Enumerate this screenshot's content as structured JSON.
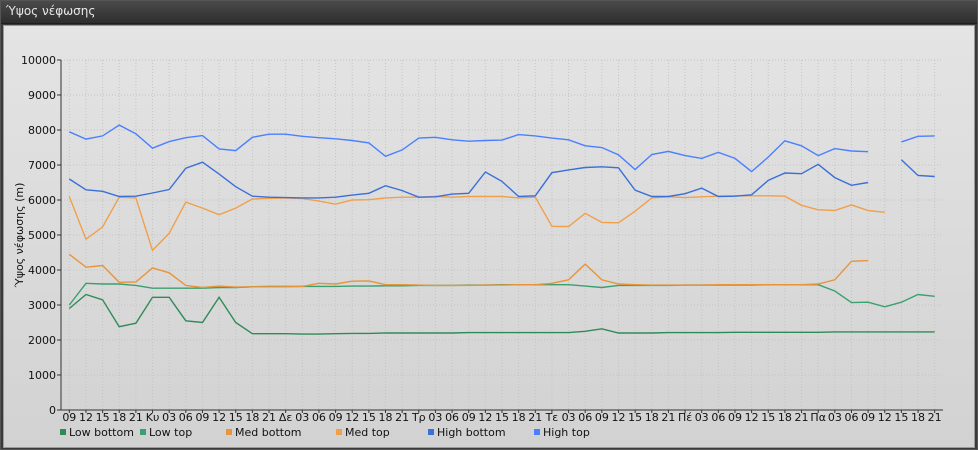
{
  "window": {
    "title": "Ύψος νέφωσης"
  },
  "chart_data": {
    "type": "line",
    "title": "",
    "xlabel": "",
    "ylabel": "Ύψος νέφωσης (m)",
    "ylim": [
      0,
      10000
    ],
    "yticks": [
      0,
      1000,
      2000,
      3000,
      4000,
      5000,
      6000,
      7000,
      8000,
      9000,
      10000
    ],
    "grid": true,
    "legend_position": "bottom-left",
    "categories": [
      "09",
      "12",
      "15",
      "18",
      "21",
      "Κυ",
      "03",
      "06",
      "09",
      "12",
      "15",
      "18",
      "21",
      "Δε",
      "03",
      "06",
      "09",
      "12",
      "15",
      "18",
      "21",
      "Τρ",
      "03",
      "06",
      "09",
      "12",
      "15",
      "18",
      "21",
      "Τε",
      "03",
      "06",
      "09",
      "12",
      "15",
      "18",
      "21",
      "Πέ",
      "03",
      "06",
      "09",
      "12",
      "15",
      "18",
      "21",
      "Πα",
      "03",
      "06",
      "09",
      "12",
      "15",
      "18",
      "21"
    ],
    "series": [
      {
        "name": "Low bottom",
        "color": "#2e8b57",
        "values": [
          2900,
          3300,
          3150,
          2380,
          2480,
          3220,
          3220,
          2550,
          2500,
          3220,
          2500,
          2180,
          2180,
          2180,
          2170,
          2170,
          2180,
          2190,
          2190,
          2200,
          2200,
          2200,
          2200,
          2200,
          2210,
          2210,
          2210,
          2210,
          2210,
          2210,
          2210,
          2250,
          2320,
          2200,
          2200,
          2200,
          2210,
          2210,
          2210,
          2210,
          2220,
          2220,
          2220,
          2220,
          2220,
          2220,
          2230,
          2230,
          2230,
          2230,
          2230,
          2230,
          2230
        ]
      },
      {
        "name": "Low top",
        "color": "#3aa070",
        "values": [
          3000,
          3620,
          3600,
          3600,
          3560,
          3480,
          3480,
          3480,
          3480,
          3500,
          3500,
          3520,
          3530,
          3530,
          3530,
          3530,
          3530,
          3540,
          3540,
          3550,
          3550,
          3560,
          3560,
          3560,
          3570,
          3570,
          3580,
          3580,
          3580,
          3580,
          3580,
          3540,
          3500,
          3560,
          3560,
          3560,
          3560,
          3570,
          3570,
          3570,
          3570,
          3570,
          3580,
          3580,
          3580,
          3580,
          3400,
          3070,
          3080,
          2950,
          3080,
          3300,
          3250
        ]
      },
      {
        "name": "Med bottom",
        "color": "#e8943a",
        "values": [
          4450,
          4080,
          4130,
          3650,
          3660,
          4060,
          3920,
          3560,
          3500,
          3540,
          3510,
          3520,
          3520,
          3520,
          3530,
          3620,
          3600,
          3680,
          3690,
          3580,
          3580,
          3570,
          3560,
          3560,
          3560,
          3570,
          3570,
          3580,
          3580,
          3620,
          3720,
          4170,
          3720,
          3600,
          3580,
          3570,
          3570,
          3570,
          3570,
          3580,
          3580,
          3580,
          3580,
          3580,
          3580,
          3600,
          3720,
          4250,
          4270,
          null,
          null,
          null,
          null
        ]
      },
      {
        "name": "Med top",
        "color": "#f0a04b",
        "values": [
          6100,
          4880,
          5230,
          6080,
          6060,
          4560,
          5050,
          5940,
          5770,
          5580,
          5770,
          6030,
          6050,
          6060,
          6040,
          5970,
          5880,
          6000,
          6010,
          6060,
          6080,
          6080,
          6100,
          6080,
          6100,
          6100,
          6100,
          6060,
          6080,
          5250,
          5240,
          5620,
          5360,
          5350,
          5680,
          6060,
          6090,
          6070,
          6090,
          6110,
          6120,
          6120,
          6120,
          6110,
          5850,
          5720,
          5700,
          5860,
          5700,
          5650,
          null,
          null,
          null
        ]
      },
      {
        "name": "High bottom",
        "color": "#3a6fd8",
        "values": [
          6600,
          6290,
          6250,
          6100,
          6110,
          6200,
          6300,
          6910,
          7080,
          6740,
          6380,
          6110,
          6080,
          6070,
          6060,
          6060,
          6080,
          6140,
          6190,
          6410,
          6270,
          6080,
          6090,
          6170,
          6190,
          6800,
          6530,
          6100,
          6120,
          6780,
          6860,
          6930,
          6950,
          6920,
          6280,
          6100,
          6100,
          6180,
          6340,
          6100,
          6110,
          6150,
          6560,
          6770,
          6750,
          7020,
          6640,
          6420,
          6500,
          null,
          7150,
          6700,
          6670
        ]
      },
      {
        "name": "High top",
        "color": "#4a80ff",
        "values": [
          7950,
          7740,
          7830,
          8140,
          7890,
          7480,
          7670,
          7780,
          7840,
          7460,
          7410,
          7790,
          7880,
          7880,
          7820,
          7780,
          7750,
          7700,
          7630,
          7250,
          7430,
          7770,
          7790,
          7720,
          7680,
          7700,
          7710,
          7870,
          7830,
          7770,
          7720,
          7550,
          7500,
          7290,
          6870,
          7300,
          7390,
          7270,
          7190,
          7360,
          7190,
          6810,
          7230,
          7690,
          7550,
          7270,
          7470,
          7400,
          7380,
          null,
          7660,
          7820,
          7830
        ]
      }
    ]
  }
}
